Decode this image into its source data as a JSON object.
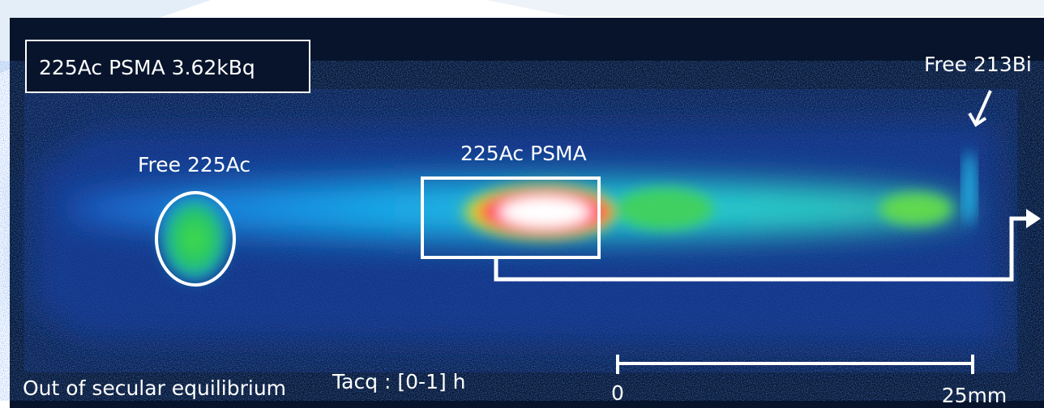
{
  "sample_label": "225Ac PSMA 3.62kBq",
  "annotations": {
    "free_bi": "Free 213Bi",
    "free_ac": "Free 225Ac",
    "psma": "225Ac PSMA"
  },
  "footer": {
    "equilibrium": "Out of secular equilibrium",
    "acquisition": "Tacq : [0-1] h"
  },
  "scale_bar": {
    "start": "0",
    "end": "25mm"
  }
}
